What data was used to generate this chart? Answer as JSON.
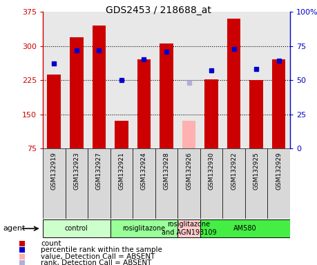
{
  "title": "GDS2453 / 218688_at",
  "samples": [
    "GSM132919",
    "GSM132923",
    "GSM132927",
    "GSM132921",
    "GSM132924",
    "GSM132928",
    "GSM132926",
    "GSM132930",
    "GSM132922",
    "GSM132925",
    "GSM132929"
  ],
  "bar_values": [
    237,
    320,
    345,
    135,
    270,
    305,
    null,
    227,
    360,
    225,
    270
  ],
  "bar_absent_values": [
    null,
    null,
    null,
    null,
    null,
    null,
    135,
    null,
    null,
    null,
    null
  ],
  "rank_values": [
    62,
    72,
    72,
    50,
    65,
    71,
    null,
    57,
    73,
    58,
    64
  ],
  "rank_absent_values": [
    null,
    null,
    null,
    null,
    null,
    null,
    48,
    null,
    null,
    null,
    null
  ],
  "bar_color": "#cc0000",
  "bar_absent_color": "#ffb0b0",
  "rank_color": "#0000cc",
  "rank_absent_color": "#b0b0dd",
  "agents": [
    {
      "label": "control",
      "start": 0,
      "end": 3,
      "color": "#ccffcc"
    },
    {
      "label": "rosiglitazone",
      "start": 3,
      "end": 6,
      "color": "#99ff99"
    },
    {
      "label": "rosiglitazone\nand AGN193109",
      "start": 6,
      "end": 7,
      "color": "#ffcccc"
    },
    {
      "label": "AM580",
      "start": 7,
      "end": 11,
      "color": "#44ee44"
    }
  ],
  "ylim_left": [
    75,
    375
  ],
  "ylim_right": [
    0,
    100
  ],
  "yticks_left": [
    75,
    150,
    225,
    300,
    375
  ],
  "yticks_right": [
    0,
    25,
    50,
    75,
    100
  ],
  "ytick_labels_right": [
    "0",
    "25",
    "50",
    "75",
    "100%"
  ],
  "left_axis_color": "#cc0000",
  "right_axis_color": "#0000cc",
  "plot_bg_color": "#e8e8e8",
  "legend_items": [
    {
      "label": "count",
      "color": "#cc0000"
    },
    {
      "label": "percentile rank within the sample",
      "color": "#0000cc"
    },
    {
      "label": "value, Detection Call = ABSENT",
      "color": "#ffb0b0"
    },
    {
      "label": "rank, Detection Call = ABSENT",
      "color": "#b0b0dd"
    }
  ],
  "gridlines": [
    150,
    225,
    300
  ]
}
